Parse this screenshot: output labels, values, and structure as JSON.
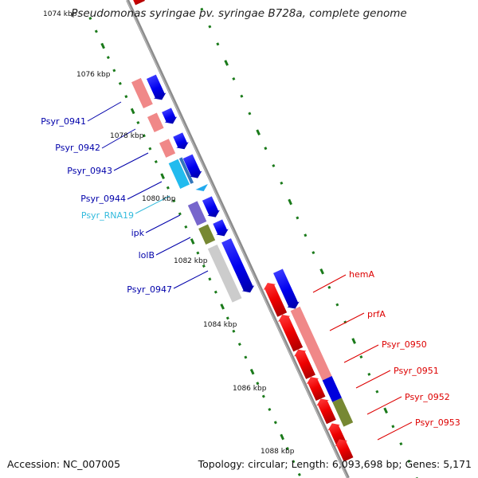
{
  "title": "Pseudomonas syringae pv. syringae B728a, complete genome",
  "footer": {
    "accession": "Accession: NC_007005",
    "topology": "Topology: circular; Length: 6,093,698 bp; Genes: 5,171"
  },
  "scale": {
    "ticks": [
      "1074 kbp",
      "1076 kbp",
      "1078 kbp",
      "1080 kbp",
      "1082 kbp",
      "1084 kbp",
      "1086 kbp",
      "1088 kbp"
    ]
  },
  "labels_left": [
    {
      "text": "Psyr_0941",
      "color": "#0000aa"
    },
    {
      "text": "Psyr_0942",
      "color": "#0000aa"
    },
    {
      "text": "Psyr_0943",
      "color": "#0000aa"
    },
    {
      "text": "Psyr_0944",
      "color": "#0000aa"
    },
    {
      "text": "Psyr_RNA19",
      "color": "#33bbdd"
    },
    {
      "text": "ipk",
      "color": "#0000aa"
    },
    {
      "text": "lolB",
      "color": "#0000aa"
    },
    {
      "text": "Psyr_0947",
      "color": "#0000aa"
    }
  ],
  "labels_right": [
    {
      "text": "hemA",
      "color": "#dd0000"
    },
    {
      "text": "prfA",
      "color": "#dd0000"
    },
    {
      "text": "Psyr_0950",
      "color": "#dd0000"
    },
    {
      "text": "Psyr_0951",
      "color": "#dd0000"
    },
    {
      "text": "Psyr_0952",
      "color": "#dd0000"
    },
    {
      "text": "Psyr_0953",
      "color": "#dd0000"
    }
  ],
  "colors": {
    "backbone": "#8c8c8c",
    "reverse_cds": "#ee0000",
    "forward_cds": "#0000ee",
    "cog_red": "#f08888",
    "cog_blue": "#0000dd",
    "cog_cyan": "#22bbee",
    "cog_purple": "#7766cc",
    "cog_olive": "#778833",
    "cog_grey": "#cccccc",
    "gc_skew": "#1a7a1a"
  }
}
